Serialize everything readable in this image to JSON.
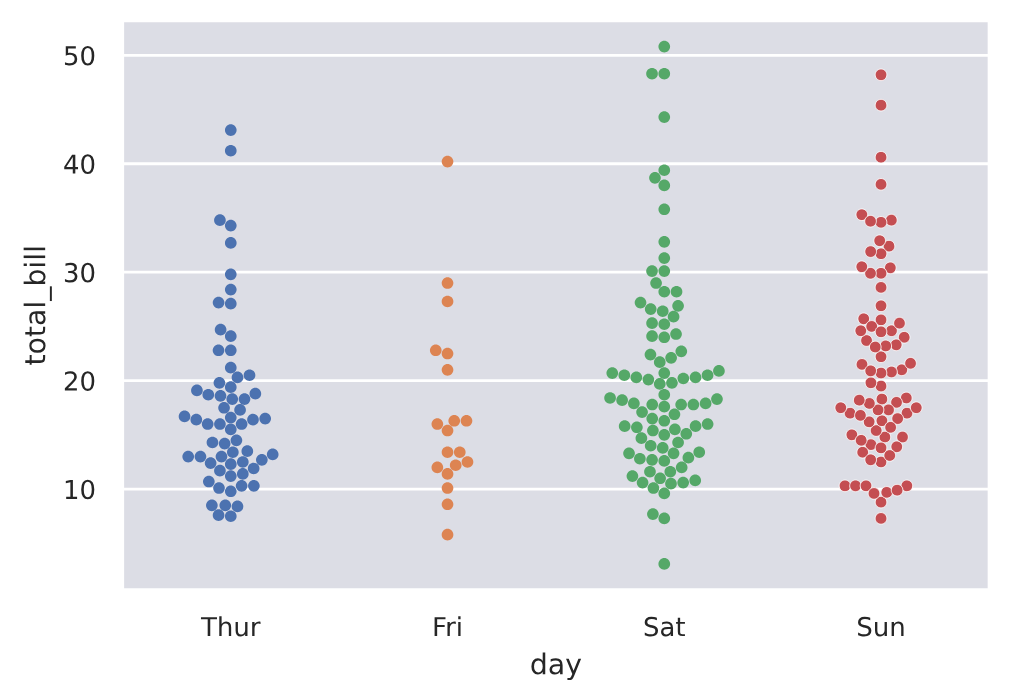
{
  "chart_data": {
    "type": "scatter",
    "xlabel": "day",
    "ylabel": "total_bill",
    "categories": [
      "Thur",
      "Fri",
      "Sat",
      "Sun"
    ],
    "ylim": [
      0.7,
      53.2
    ],
    "yticks": [
      10,
      20,
      30,
      40,
      50
    ],
    "grid": "y",
    "marker": "circle",
    "legend": false,
    "series": [
      {
        "color": "#4c72b0",
        "x": [
          "Thur",
          "Thur",
          "Thur",
          "Thur",
          "Thur",
          "Thur",
          "Thur",
          "Thur",
          "Thur",
          "Thur",
          "Thur",
          "Thur",
          "Thur",
          "Thur",
          "Thur",
          "Thur",
          "Thur",
          "Thur",
          "Thur",
          "Thur",
          "Thur",
          "Thur",
          "Thur",
          "Thur",
          "Thur",
          "Thur",
          "Thur",
          "Thur",
          "Thur",
          "Thur",
          "Thur",
          "Thur",
          "Thur",
          "Thur",
          "Thur",
          "Thur",
          "Thur",
          "Thur",
          "Thur",
          "Thur",
          "Thur",
          "Thur",
          "Thur",
          "Thur",
          "Thur",
          "Thur",
          "Thur",
          "Thur",
          "Thur",
          "Thur",
          "Thur",
          "Thur",
          "Thur",
          "Thur",
          "Thur",
          "Thur",
          "Thur",
          "Thur",
          "Thur",
          "Thur",
          "Thur",
          "Thur"
        ],
        "values": [
          27.2,
          22.8,
          17.3,
          19.4,
          16.7,
          10.1,
          32.7,
          16.0,
          34.8,
          13.0,
          18.3,
          24.7,
          21.2,
          10.7,
          12.4,
          24.1,
          11.7,
          13.4,
          14.3,
          16.0,
          12.5,
          29.8,
          8.5,
          14.5,
          11.4,
          22.8,
          19.1,
          20.3,
          11.2,
          12.3,
          18.3,
          8.5,
          10.3,
          14.2,
          16.0,
          13.2,
          17.5,
          34.3,
          41.2,
          27.1,
          16.4,
          8.4,
          18.6,
          11.9,
          9.8,
          7.5,
          19.8,
          28.4,
          15.5,
          16.6,
          7.6,
          10.3,
          43.1,
          13.0,
          13.5,
          18.7,
          12.7,
          13.0,
          16.4,
          20.5,
          16.5,
          18.8
        ]
      },
      {
        "color": "#dd8452",
        "x": [
          "Fri",
          "Fri",
          "Fri",
          "Fri",
          "Fri",
          "Fri",
          "Fri",
          "Fri",
          "Fri",
          "Fri",
          "Fri",
          "Fri",
          "Fri",
          "Fri",
          "Fri",
          "Fri",
          "Fri",
          "Fri",
          "Fri"
        ],
        "values": [
          29.0,
          22.5,
          5.8,
          16.3,
          22.8,
          40.2,
          27.3,
          12.0,
          21.0,
          12.5,
          11.4,
          15.4,
          12.2,
          13.4,
          8.6,
          16.0,
          13.4,
          16.3,
          10.1
        ]
      },
      {
        "color": "#55a868",
        "x": [
          "Sat",
          "Sat",
          "Sat",
          "Sat",
          "Sat",
          "Sat",
          "Sat",
          "Sat",
          "Sat",
          "Sat",
          "Sat",
          "Sat",
          "Sat",
          "Sat",
          "Sat",
          "Sat",
          "Sat",
          "Sat",
          "Sat",
          "Sat",
          "Sat",
          "Sat",
          "Sat",
          "Sat",
          "Sat",
          "Sat",
          "Sat",
          "Sat",
          "Sat",
          "Sat",
          "Sat",
          "Sat",
          "Sat",
          "Sat",
          "Sat",
          "Sat",
          "Sat",
          "Sat",
          "Sat",
          "Sat",
          "Sat",
          "Sat",
          "Sat",
          "Sat",
          "Sat",
          "Sat",
          "Sat",
          "Sat",
          "Sat",
          "Sat",
          "Sat",
          "Sat",
          "Sat",
          "Sat",
          "Sat",
          "Sat",
          "Sat",
          "Sat",
          "Sat",
          "Sat",
          "Sat",
          "Sat",
          "Sat",
          "Sat",
          "Sat",
          "Sat",
          "Sat",
          "Sat",
          "Sat",
          "Sat",
          "Sat",
          "Sat",
          "Sat",
          "Sat",
          "Sat",
          "Sat",
          "Sat",
          "Sat",
          "Sat",
          "Sat",
          "Sat",
          "Sat",
          "Sat",
          "Sat",
          "Sat",
          "Sat",
          "Sat"
        ],
        "values": [
          20.7,
          17.9,
          20.3,
          15.8,
          39.4,
          19.8,
          17.8,
          13.4,
          12.7,
          21.7,
          19.7,
          9.6,
          18.4,
          15.1,
          20.7,
          17.8,
          24.1,
          16.3,
          16.9,
          18.7,
          31.3,
          16.0,
          38.0,
          26.4,
          11.2,
          48.3,
          20.3,
          13.8,
          11.0,
          18.3,
          17.6,
          20.1,
          16.5,
          3.1,
          20.2,
          15.0,
          12.0,
          17.1,
          26.9,
          25.3,
          14.7,
          10.5,
          17.9,
          44.3,
          22.4,
          20.9,
          15.4,
          20.5,
          25.2,
          18.2,
          14.3,
          14.0,
          7.3,
          10.6,
          10.6,
          50.8,
          15.8,
          26.6,
          38.7,
          24.3,
          12.8,
          30.1,
          25.9,
          48.3,
          13.3,
          28.2,
          12.9,
          28.2,
          11.6,
          7.7,
          30.1,
          20.5,
          13.3,
          22.1,
          24.0,
          15.7,
          11.6,
          10.8,
          15.5,
          10.1,
          12.6,
          32.8,
          35.8,
          29.0,
          27.2,
          22.7,
          17.8
        ]
      },
      {
        "color": "#c44e52",
        "x": [
          "Sun",
          "Sun",
          "Sun",
          "Sun",
          "Sun",
          "Sun",
          "Sun",
          "Sun",
          "Sun",
          "Sun",
          "Sun",
          "Sun",
          "Sun",
          "Sun",
          "Sun",
          "Sun",
          "Sun",
          "Sun",
          "Sun",
          "Sun",
          "Sun",
          "Sun",
          "Sun",
          "Sun",
          "Sun",
          "Sun",
          "Sun",
          "Sun",
          "Sun",
          "Sun",
          "Sun",
          "Sun",
          "Sun",
          "Sun",
          "Sun",
          "Sun",
          "Sun",
          "Sun",
          "Sun",
          "Sun",
          "Sun",
          "Sun",
          "Sun",
          "Sun",
          "Sun",
          "Sun",
          "Sun",
          "Sun",
          "Sun",
          "Sun",
          "Sun",
          "Sun",
          "Sun",
          "Sun",
          "Sun",
          "Sun",
          "Sun",
          "Sun",
          "Sun",
          "Sun",
          "Sun",
          "Sun",
          "Sun",
          "Sun",
          "Sun",
          "Sun",
          "Sun",
          "Sun",
          "Sun",
          "Sun",
          "Sun",
          "Sun",
          "Sun",
          "Sun",
          "Sun",
          "Sun"
        ],
        "values": [
          17.0,
          10.3,
          21.0,
          23.7,
          24.6,
          25.3,
          8.8,
          26.9,
          15.0,
          14.8,
          10.3,
          35.3,
          15.4,
          18.4,
          14.8,
          21.6,
          10.3,
          16.3,
          17.0,
          17.5,
          13.9,
          9.7,
          30.4,
          18.3,
          22.2,
          32.4,
          28.6,
          18.0,
          12.5,
          10.3,
          34.8,
          9.9,
          25.6,
          19.5,
          38.1,
          24.0,
          25.7,
          17.3,
          29.9,
          14.1,
          13.1,
          17.3,
          24.6,
          19.8,
          29.9,
          48.2,
          25.0,
          13.4,
          16.5,
          21.5,
          12.7,
          16.2,
          13.8,
          17.5,
          24.5,
          20.8,
          31.7,
          7.3,
          31.9,
          16.8,
          32.9,
          17.9,
          14.5,
          9.6,
          34.6,
          34.7,
          23.3,
          45.4,
          23.2,
          40.6,
          20.7,
          20.9,
          30.5,
          18.2,
          23.1,
          15.7
        ]
      }
    ]
  }
}
